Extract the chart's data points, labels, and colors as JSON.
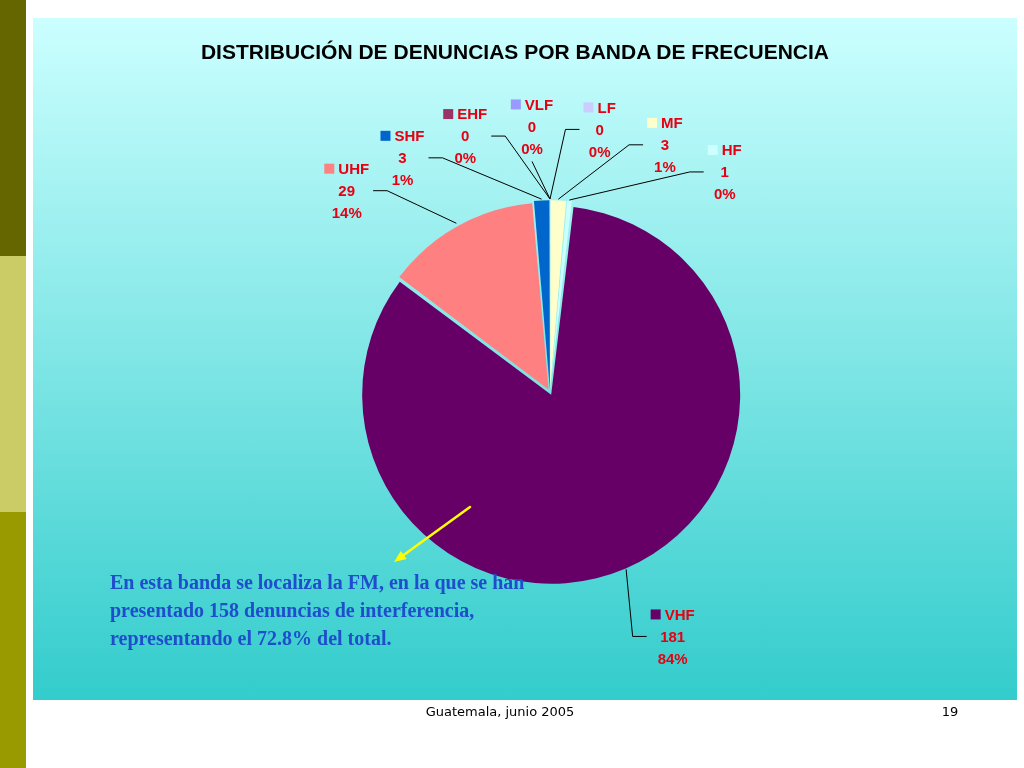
{
  "chart_data": {
    "type": "pie",
    "title": "DISTRIBUCIÓN DE DENUNCIAS POR BANDA DE FRECUENCIA",
    "categories": [
      "VLF",
      "LF",
      "MF",
      "HF",
      "VHF",
      "UHF",
      "SHF",
      "EHF"
    ],
    "values": [
      0,
      0,
      3,
      1,
      181,
      29,
      3,
      0
    ],
    "colors": [
      "#9999ff",
      "#ccccff",
      "#ffffcc",
      "#ccffff",
      "#660066",
      "#ff8080",
      "#0066cc",
      "#993366"
    ],
    "legend": "top",
    "value_labels": [
      "0 0%",
      "0 0%",
      "3 1%",
      "1 0%",
      "181 84%",
      "29 14%",
      "3 1%",
      "0 0%"
    ],
    "annotations": [
      "En esta banda se localiza la FM, en la que se han presentado 158 denuncias de interferencia, representando el 72.8% del total.",
      "Guatemala, junio 2005",
      "19"
    ]
  }
}
